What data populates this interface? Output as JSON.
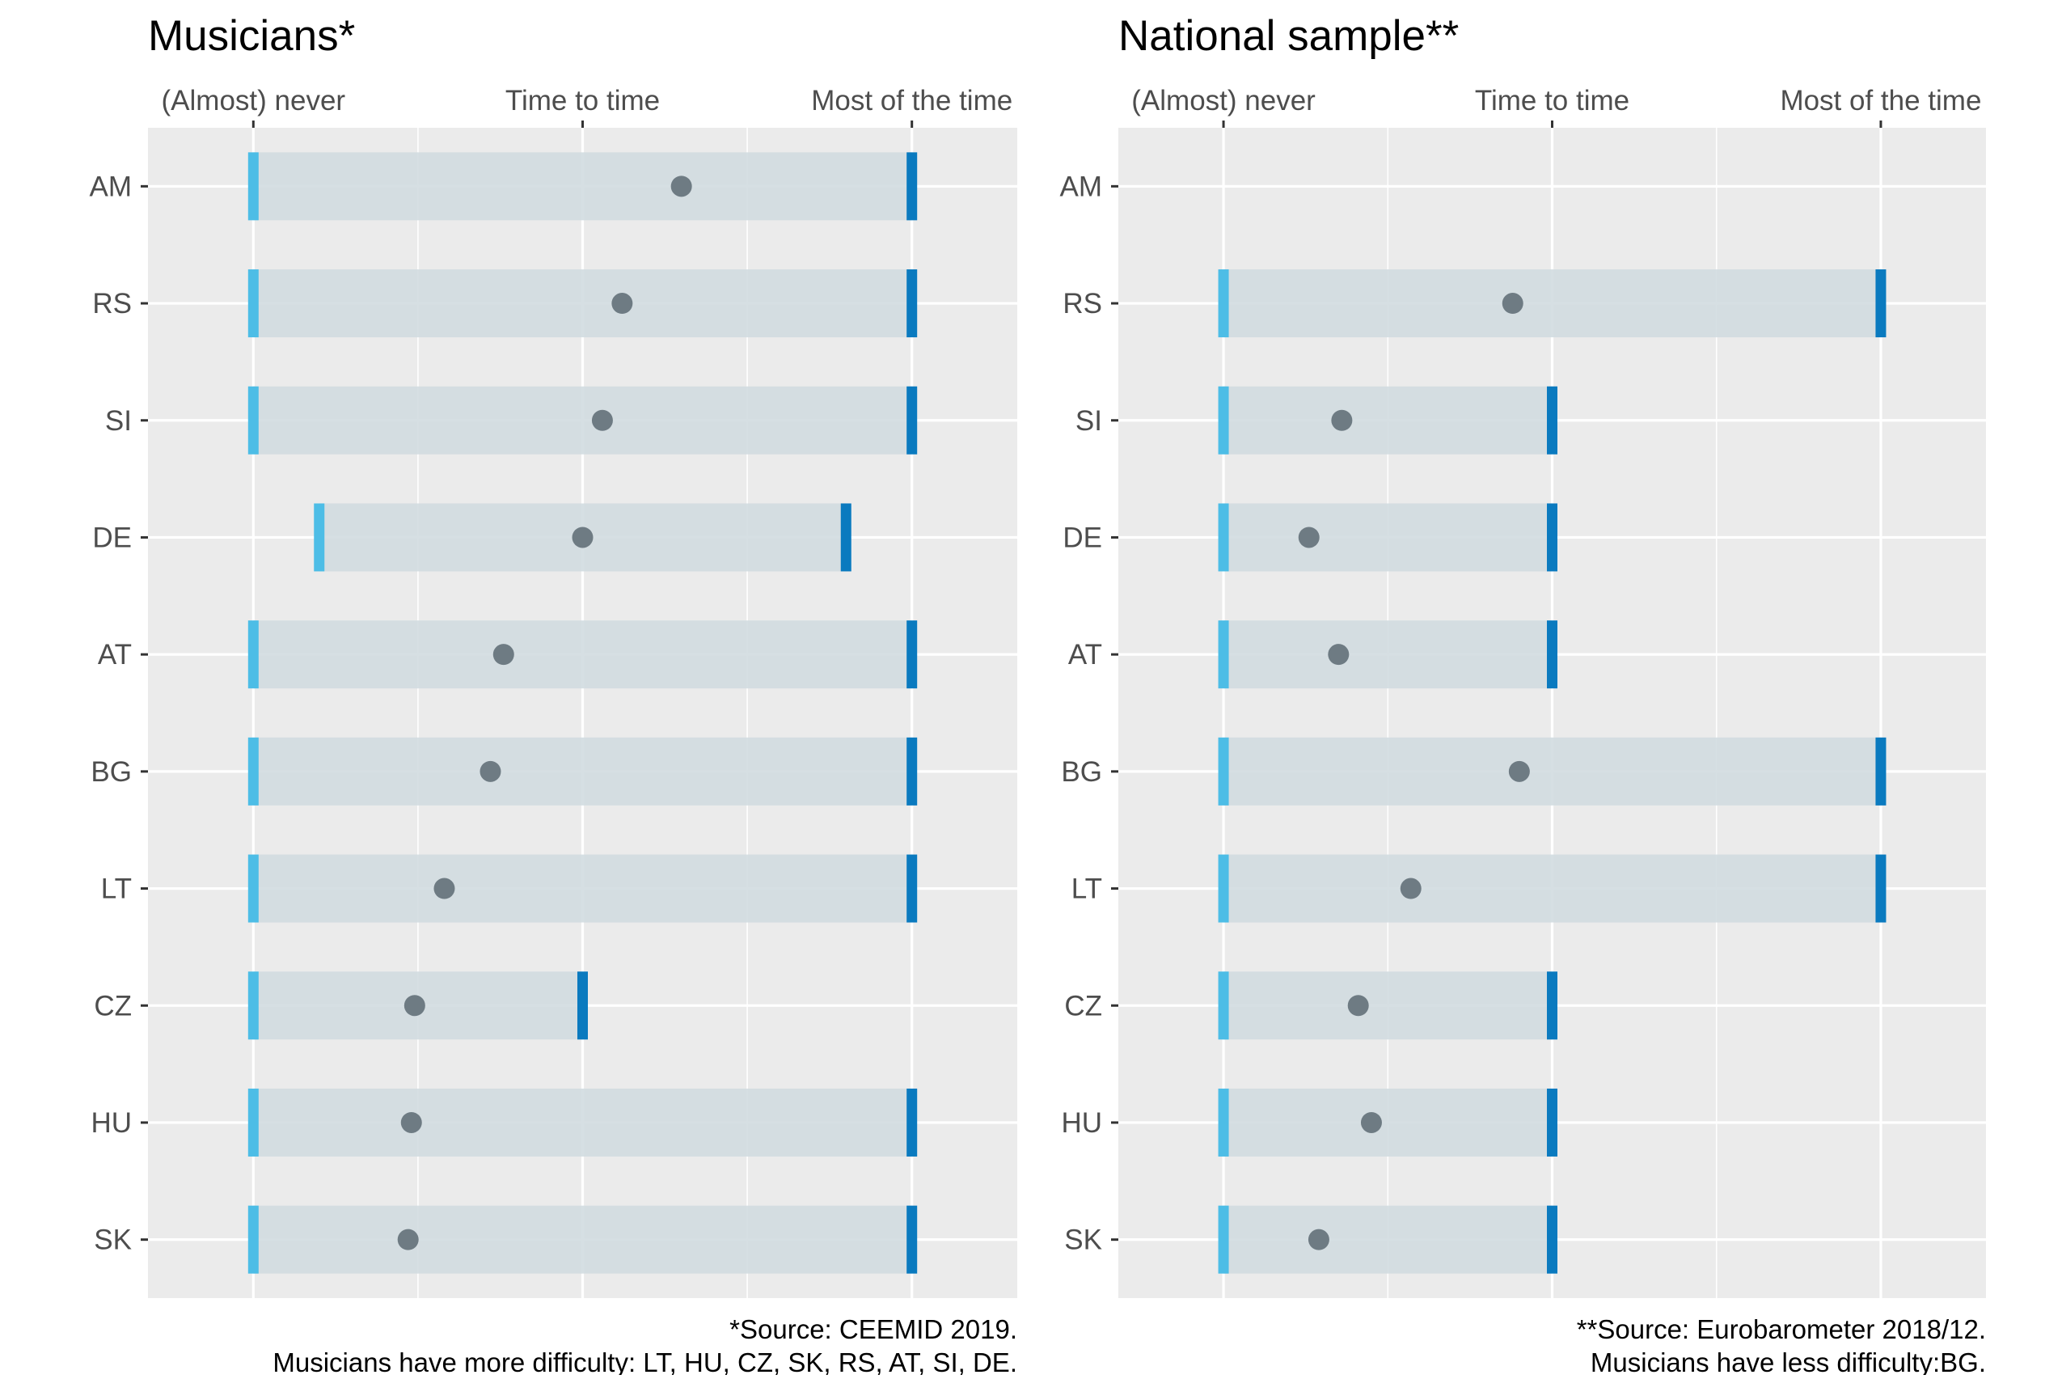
{
  "chart_data": [
    {
      "type": "dumbbell-range",
      "title": "Musicians*",
      "x_axis_position": "top",
      "x_tick_labels": [
        "(Almost) never",
        "Time to time",
        "Most of the time"
      ],
      "x_tick_values": [
        1,
        2,
        3
      ],
      "xlim": [
        0.68,
        3.32
      ],
      "categories": [
        "AM",
        "RS",
        "SI",
        "DE",
        "AT",
        "BG",
        "LT",
        "CZ",
        "HU",
        "SK"
      ],
      "ranges": [
        {
          "country": "AM",
          "min": 1,
          "max": 3,
          "mean": 2.3
        },
        {
          "country": "RS",
          "min": 1,
          "max": 3,
          "mean": 2.12
        },
        {
          "country": "SI",
          "min": 1,
          "max": 3,
          "mean": 2.06
        },
        {
          "country": "DE",
          "min": 1.2,
          "max": 2.8,
          "mean": 2.0
        },
        {
          "country": "AT",
          "min": 1,
          "max": 3,
          "mean": 1.76
        },
        {
          "country": "BG",
          "min": 1,
          "max": 3,
          "mean": 1.72
        },
        {
          "country": "LT",
          "min": 1,
          "max": 3,
          "mean": 1.58
        },
        {
          "country": "CZ",
          "min": 1,
          "max": 2,
          "mean": 1.49
        },
        {
          "country": "HU",
          "min": 1,
          "max": 3,
          "mean": 1.48
        },
        {
          "country": "SK",
          "min": 1,
          "max": 3,
          "mean": 1.47
        }
      ],
      "caption_lines": [
        "*Source: CEEMID 2019.",
        "Musicians have more difficulty: LT, HU, CZ, SK, RS, AT, SI, DE."
      ],
      "grid": true
    },
    {
      "type": "dumbbell-range",
      "title": "National sample**",
      "x_axis_position": "top",
      "x_tick_labels": [
        "(Almost) never",
        "Time to time",
        "Most of the time"
      ],
      "x_tick_values": [
        1,
        2,
        3
      ],
      "xlim": [
        0.68,
        3.32
      ],
      "categories": [
        "AM",
        "RS",
        "SI",
        "DE",
        "AT",
        "BG",
        "LT",
        "CZ",
        "HU",
        "SK"
      ],
      "ranges": [
        {
          "country": "RS",
          "min": 1,
          "max": 3,
          "mean": 1.88
        },
        {
          "country": "SI",
          "min": 1,
          "max": 2,
          "mean": 1.36
        },
        {
          "country": "DE",
          "min": 1,
          "max": 2,
          "mean": 1.26
        },
        {
          "country": "AT",
          "min": 1,
          "max": 2,
          "mean": 1.35
        },
        {
          "country": "BG",
          "min": 1,
          "max": 3,
          "mean": 1.9
        },
        {
          "country": "LT",
          "min": 1,
          "max": 3,
          "mean": 1.57
        },
        {
          "country": "CZ",
          "min": 1,
          "max": 2,
          "mean": 1.41
        },
        {
          "country": "HU",
          "min": 1,
          "max": 2,
          "mean": 1.45
        },
        {
          "country": "SK",
          "min": 1,
          "max": 2,
          "mean": 1.29
        }
      ],
      "caption_lines": [
        "**Source: Eurobarometer 2018/12.",
        "Musicians have less difficulty:BG."
      ],
      "grid": true
    }
  ],
  "colors": {
    "panel_background": "#ebebeb",
    "grid_line": "#ffffff",
    "range_fill": "#d1dce0",
    "min_cap": "#4dbde6",
    "max_cap": "#0a7abf",
    "mean_point": "#6e7b83",
    "axis_text": "#4d4d4d",
    "title_text": "#000000"
  }
}
